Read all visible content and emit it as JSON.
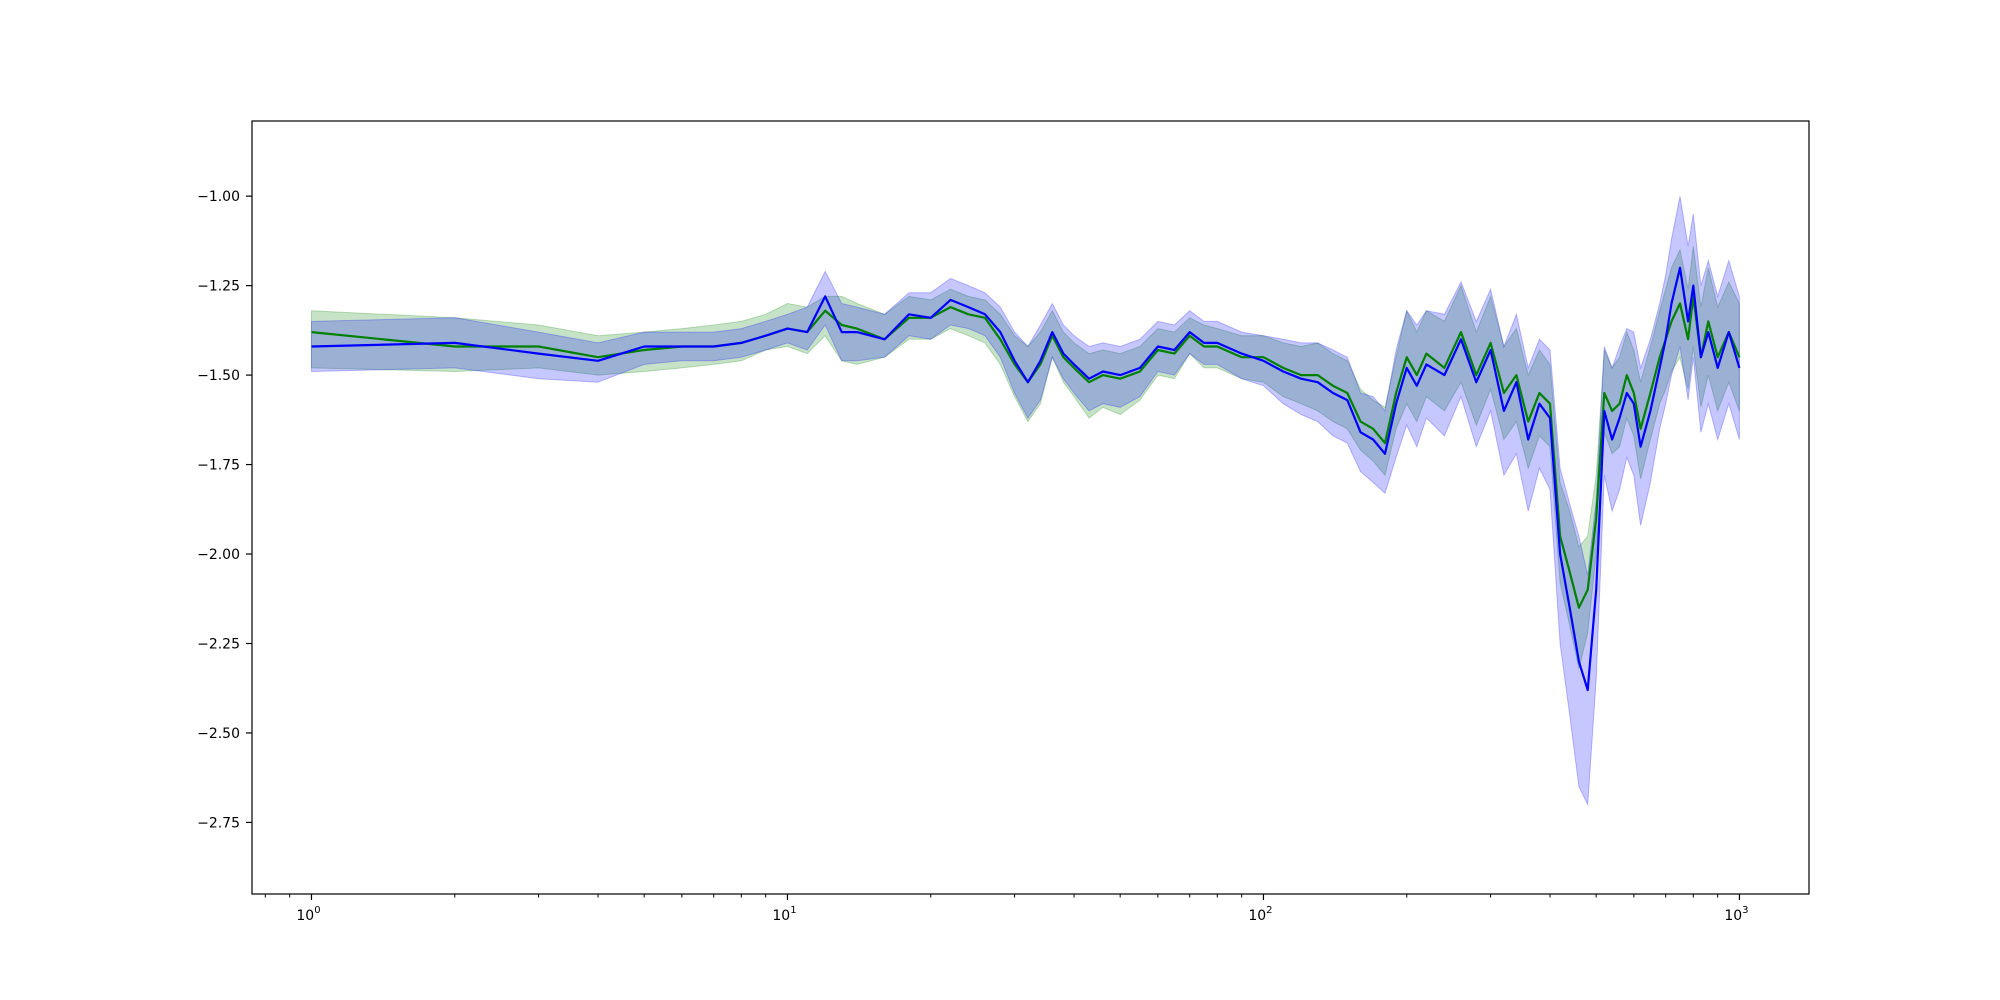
{
  "chart_data": {
    "type": "line",
    "title": "",
    "xlabel": "",
    "ylabel": "",
    "x_scale": "log",
    "xlim": [
      0.75,
      1400
    ],
    "ylim": [
      -2.95,
      -0.79
    ],
    "x_ticks": [
      1,
      10,
      100,
      1000
    ],
    "x_tick_labels": [
      {
        "base": "10",
        "exp": "0"
      },
      {
        "base": "10",
        "exp": "1"
      },
      {
        "base": "10",
        "exp": "2"
      },
      {
        "base": "10",
        "exp": "3"
      }
    ],
    "y_ticks": [
      -1.0,
      -1.25,
      -1.5,
      -1.75,
      -2.0,
      -2.25,
      -2.5,
      -2.75
    ],
    "y_tick_labels": [
      "−1.00",
      "−1.25",
      "−1.50",
      "−1.75",
      "−2.00",
      "−2.25",
      "−2.50",
      "−2.75"
    ],
    "grid": false,
    "colors": {
      "green_line": "#008000",
      "blue_line": "#0000ff",
      "green_band": "#008000",
      "blue_band": "#0000ff"
    },
    "series": [
      {
        "color": "green",
        "x": [
          1,
          2,
          3,
          4,
          5,
          6,
          7,
          8,
          9,
          10,
          11,
          12,
          13,
          14,
          16,
          18,
          20,
          22,
          24,
          26,
          28,
          30,
          32,
          34,
          36,
          38,
          40,
          43,
          46,
          50,
          55,
          60,
          65,
          70,
          75,
          80,
          90,
          100,
          110,
          120,
          130,
          140,
          150,
          160,
          170,
          180,
          190,
          200,
          210,
          220,
          240,
          260,
          280,
          300,
          320,
          340,
          360,
          380,
          400,
          420,
          440,
          460,
          480,
          500,
          520,
          540,
          560,
          580,
          600,
          620,
          650,
          680,
          700,
          720,
          750,
          780,
          800,
          830,
          860,
          900,
          950,
          1000
        ],
        "y": [
          -1.38,
          -1.42,
          -1.42,
          -1.45,
          -1.43,
          -1.42,
          -1.42,
          -1.41,
          -1.39,
          -1.37,
          -1.38,
          -1.32,
          -1.36,
          -1.37,
          -1.4,
          -1.34,
          -1.34,
          -1.31,
          -1.33,
          -1.34,
          -1.4,
          -1.47,
          -1.52,
          -1.47,
          -1.39,
          -1.45,
          -1.48,
          -1.52,
          -1.5,
          -1.51,
          -1.49,
          -1.43,
          -1.44,
          -1.39,
          -1.42,
          -1.42,
          -1.45,
          -1.45,
          -1.48,
          -1.5,
          -1.5,
          -1.53,
          -1.55,
          -1.63,
          -1.65,
          -1.69,
          -1.55,
          -1.45,
          -1.5,
          -1.44,
          -1.48,
          -1.38,
          -1.5,
          -1.41,
          -1.55,
          -1.5,
          -1.63,
          -1.55,
          -1.58,
          -1.95,
          -2.05,
          -2.15,
          -2.1,
          -1.9,
          -1.55,
          -1.6,
          -1.58,
          -1.5,
          -1.55,
          -1.65,
          -1.55,
          -1.45,
          -1.4,
          -1.35,
          -1.3,
          -1.4,
          -1.28,
          -1.45,
          -1.35,
          -1.45,
          -1.38,
          -1.45
        ],
        "lower": [
          -1.48,
          -1.49,
          -1.48,
          -1.5,
          -1.49,
          -1.48,
          -1.47,
          -1.46,
          -1.43,
          -1.42,
          -1.44,
          -1.39,
          -1.46,
          -1.47,
          -1.45,
          -1.4,
          -1.4,
          -1.37,
          -1.39,
          -1.41,
          -1.47,
          -1.56,
          -1.63,
          -1.58,
          -1.45,
          -1.52,
          -1.56,
          -1.62,
          -1.59,
          -1.61,
          -1.57,
          -1.5,
          -1.51,
          -1.44,
          -1.48,
          -1.48,
          -1.51,
          -1.52,
          -1.56,
          -1.58,
          -1.6,
          -1.63,
          -1.65,
          -1.71,
          -1.74,
          -1.78,
          -1.65,
          -1.58,
          -1.63,
          -1.56,
          -1.6,
          -1.52,
          -1.64,
          -1.54,
          -1.68,
          -1.63,
          -1.76,
          -1.67,
          -1.7,
          -2.08,
          -2.2,
          -2.32,
          -2.22,
          -2.0,
          -1.66,
          -1.72,
          -1.7,
          -1.62,
          -1.67,
          -1.79,
          -1.68,
          -1.58,
          -1.54,
          -1.49,
          -1.45,
          -1.54,
          -1.42,
          -1.59,
          -1.5,
          -1.6,
          -1.52,
          -1.6
        ],
        "upper": [
          -1.32,
          -1.34,
          -1.36,
          -1.39,
          -1.38,
          -1.37,
          -1.36,
          -1.35,
          -1.33,
          -1.3,
          -1.31,
          -1.28,
          -1.28,
          -1.3,
          -1.33,
          -1.28,
          -1.29,
          -1.26,
          -1.28,
          -1.29,
          -1.33,
          -1.39,
          -1.42,
          -1.38,
          -1.32,
          -1.38,
          -1.41,
          -1.44,
          -1.43,
          -1.44,
          -1.42,
          -1.37,
          -1.38,
          -1.34,
          -1.36,
          -1.37,
          -1.39,
          -1.39,
          -1.41,
          -1.42,
          -1.41,
          -1.44,
          -1.46,
          -1.54,
          -1.57,
          -1.59,
          -1.45,
          -1.32,
          -1.38,
          -1.32,
          -1.35,
          -1.25,
          -1.38,
          -1.28,
          -1.42,
          -1.37,
          -1.5,
          -1.43,
          -1.47,
          -1.8,
          -1.88,
          -1.98,
          -1.95,
          -1.78,
          -1.43,
          -1.48,
          -1.45,
          -1.38,
          -1.43,
          -1.52,
          -1.42,
          -1.32,
          -1.26,
          -1.2,
          -1.15,
          -1.26,
          -1.14,
          -1.31,
          -1.2,
          -1.31,
          -1.24,
          -1.3
        ]
      },
      {
        "color": "blue",
        "x": [
          1,
          2,
          3,
          4,
          5,
          6,
          7,
          8,
          9,
          10,
          11,
          12,
          13,
          14,
          16,
          18,
          20,
          22,
          24,
          26,
          28,
          30,
          32,
          34,
          36,
          38,
          40,
          43,
          46,
          50,
          55,
          60,
          65,
          70,
          75,
          80,
          90,
          100,
          110,
          120,
          130,
          140,
          150,
          160,
          170,
          180,
          190,
          200,
          210,
          220,
          240,
          260,
          280,
          300,
          320,
          340,
          360,
          380,
          400,
          420,
          440,
          460,
          480,
          500,
          520,
          540,
          560,
          580,
          600,
          620,
          650,
          680,
          700,
          720,
          750,
          780,
          800,
          830,
          860,
          900,
          950,
          1000
        ],
        "y": [
          -1.42,
          -1.41,
          -1.44,
          -1.46,
          -1.42,
          -1.42,
          -1.42,
          -1.41,
          -1.39,
          -1.37,
          -1.38,
          -1.28,
          -1.38,
          -1.38,
          -1.4,
          -1.33,
          -1.34,
          -1.29,
          -1.31,
          -1.33,
          -1.38,
          -1.46,
          -1.52,
          -1.46,
          -1.38,
          -1.44,
          -1.47,
          -1.51,
          -1.49,
          -1.5,
          -1.48,
          -1.42,
          -1.43,
          -1.38,
          -1.41,
          -1.41,
          -1.44,
          -1.46,
          -1.49,
          -1.51,
          -1.52,
          -1.55,
          -1.57,
          -1.66,
          -1.68,
          -1.72,
          -1.58,
          -1.48,
          -1.53,
          -1.47,
          -1.5,
          -1.4,
          -1.52,
          -1.43,
          -1.6,
          -1.52,
          -1.68,
          -1.58,
          -1.62,
          -2.0,
          -2.15,
          -2.3,
          -2.38,
          -2.1,
          -1.6,
          -1.68,
          -1.62,
          -1.55,
          -1.58,
          -1.7,
          -1.6,
          -1.48,
          -1.4,
          -1.3,
          -1.2,
          -1.35,
          -1.25,
          -1.45,
          -1.38,
          -1.48,
          -1.38,
          -1.48
        ],
        "lower": [
          -1.49,
          -1.48,
          -1.51,
          -1.52,
          -1.47,
          -1.46,
          -1.46,
          -1.45,
          -1.43,
          -1.41,
          -1.43,
          -1.36,
          -1.46,
          -1.46,
          -1.45,
          -1.39,
          -1.4,
          -1.36,
          -1.37,
          -1.39,
          -1.45,
          -1.55,
          -1.62,
          -1.57,
          -1.45,
          -1.51,
          -1.55,
          -1.6,
          -1.58,
          -1.59,
          -1.56,
          -1.49,
          -1.5,
          -1.44,
          -1.47,
          -1.47,
          -1.51,
          -1.53,
          -1.58,
          -1.61,
          -1.63,
          -1.67,
          -1.69,
          -1.77,
          -1.8,
          -1.83,
          -1.73,
          -1.64,
          -1.7,
          -1.62,
          -1.67,
          -1.56,
          -1.7,
          -1.6,
          -1.78,
          -1.72,
          -1.88,
          -1.76,
          -1.82,
          -2.25,
          -2.45,
          -2.65,
          -2.7,
          -2.35,
          -1.78,
          -1.88,
          -1.82,
          -1.73,
          -1.78,
          -1.92,
          -1.8,
          -1.65,
          -1.58,
          -1.5,
          -1.42,
          -1.57,
          -1.45,
          -1.66,
          -1.58,
          -1.68,
          -1.58,
          -1.68
        ],
        "upper": [
          -1.35,
          -1.34,
          -1.38,
          -1.41,
          -1.38,
          -1.38,
          -1.38,
          -1.37,
          -1.35,
          -1.33,
          -1.31,
          -1.21,
          -1.3,
          -1.31,
          -1.33,
          -1.27,
          -1.27,
          -1.23,
          -1.25,
          -1.27,
          -1.31,
          -1.38,
          -1.42,
          -1.36,
          -1.3,
          -1.36,
          -1.39,
          -1.42,
          -1.41,
          -1.42,
          -1.4,
          -1.35,
          -1.36,
          -1.32,
          -1.35,
          -1.35,
          -1.38,
          -1.39,
          -1.4,
          -1.41,
          -1.41,
          -1.43,
          -1.45,
          -1.55,
          -1.56,
          -1.6,
          -1.43,
          -1.32,
          -1.36,
          -1.32,
          -1.33,
          -1.24,
          -1.35,
          -1.26,
          -1.42,
          -1.33,
          -1.48,
          -1.4,
          -1.43,
          -1.76,
          -1.86,
          -1.95,
          -2.06,
          -1.85,
          -1.42,
          -1.48,
          -1.42,
          -1.37,
          -1.38,
          -1.48,
          -1.4,
          -1.3,
          -1.22,
          -1.12,
          -1.0,
          -1.14,
          -1.05,
          -1.25,
          -1.18,
          -1.28,
          -1.18,
          -1.28
        ]
      }
    ]
  }
}
